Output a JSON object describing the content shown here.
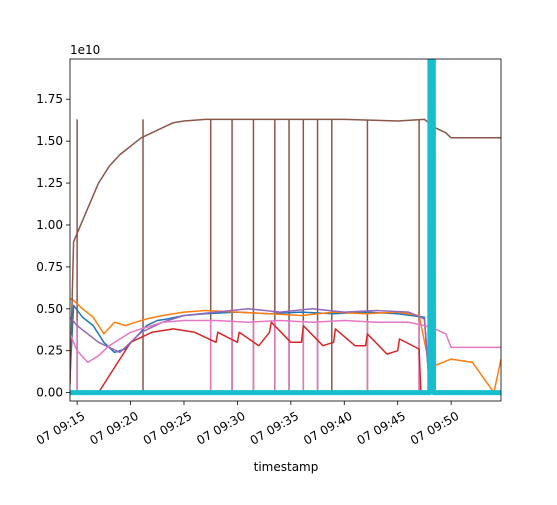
{
  "chart_data": {
    "type": "line",
    "title": "",
    "xlabel": "timestamp",
    "ylabel": "",
    "y_scale_label": "1e10",
    "xlim": [
      "07 09:14:20",
      "07 09:54:40"
    ],
    "ylim": [
      -0.05,
      1.99
    ],
    "x_ticks": [
      "07 09:15",
      "07 09:20",
      "07 09:25",
      "07 09:30",
      "07 09:35",
      "07 09:40",
      "07 09:45",
      "07 09:50"
    ],
    "y_ticks": [
      "0.00",
      "0.25",
      "0.50",
      "0.75",
      "1.00",
      "1.25",
      "1.50",
      "1.75"
    ],
    "grid": false,
    "legend": "none",
    "series": [
      {
        "color": "#1f77b4",
        "x": [
          "07 09:14:20",
          "07 09:14:40",
          "07 09:15:30",
          "07 09:16:30",
          "07 09:17:30",
          "07 09:18:30",
          "07 09:19:30",
          "07 09:20:30",
          "07 09:21:30",
          "07 09:22:30",
          "07 09:23:30",
          "07 09:25:00",
          "07 09:27:00",
          "07 09:30:00",
          "07 09:33:00",
          "07 09:36:00",
          "07 09:39:00",
          "07 09:42:00",
          "07 09:45:00",
          "07 09:47:30",
          "07 09:48:00",
          "07 09:54:40"
        ],
        "y": [
          0.1,
          0.52,
          0.45,
          0.4,
          0.3,
          0.24,
          0.26,
          0.33,
          0.4,
          0.43,
          0.44,
          0.46,
          0.47,
          0.48,
          0.47,
          0.48,
          0.47,
          0.48,
          0.47,
          0.45,
          0.0,
          0.0
        ]
      },
      {
        "color": "#ff7f0e",
        "x": [
          "07 09:14:20",
          "07 09:14:40",
          "07 09:15:30",
          "07 09:16:30",
          "07 09:17:30",
          "07 09:18:30",
          "07 09:19:30",
          "07 09:20:30",
          "07 09:21:30",
          "07 09:23:00",
          "07 09:25:00",
          "07 09:27:00",
          "07 09:30:00",
          "07 09:33:00",
          "07 09:36:00",
          "07 09:39:00",
          "07 09:42:00",
          "07 09:45:00",
          "07 09:47:00",
          "07 09:48:00",
          "07 09:50:00",
          "07 09:52:00",
          "07 09:54:00",
          "07 09:54:40"
        ],
        "y": [
          0.56,
          0.55,
          0.5,
          0.45,
          0.35,
          0.42,
          0.4,
          0.42,
          0.44,
          0.46,
          0.48,
          0.49,
          0.48,
          0.47,
          0.46,
          0.48,
          0.47,
          0.48,
          0.46,
          0.15,
          0.2,
          0.18,
          0.0,
          0.2
        ]
      },
      {
        "color": "#2ca02c",
        "x": [
          "07 09:14:20",
          "07 09:54:40"
        ],
        "y": [
          0.0,
          0.0
        ]
      },
      {
        "color": "#d62728",
        "x": [
          "07 09:14:20",
          "07 09:15:00",
          "07 09:17:00",
          "07 09:20:00",
          "07 09:22:00",
          "07 09:24:00",
          "07 09:26:00",
          "07 09:28:00",
          "07 09:28:10",
          "07 09:30:00",
          "07 09:30:10",
          "07 09:32:00",
          "07 09:33:00",
          "07 09:33:10",
          "07 09:35:00",
          "07 09:36:00",
          "07 09:36:10",
          "07 09:38:00",
          "07 09:39:00",
          "07 09:39:10",
          "07 09:41:00",
          "07 09:42:00",
          "07 09:42:10",
          "07 09:44:00",
          "07 09:45:00",
          "07 09:45:10",
          "07 09:47:00",
          "07 09:47:10",
          "07 09:48:00",
          "07 09:54:40"
        ],
        "y": [
          0.0,
          0.0,
          0.0,
          0.3,
          0.36,
          0.38,
          0.36,
          0.3,
          0.36,
          0.3,
          0.36,
          0.28,
          0.36,
          0.42,
          0.3,
          0.3,
          0.4,
          0.28,
          0.3,
          0.38,
          0.28,
          0.28,
          0.35,
          0.23,
          0.25,
          0.32,
          0.26,
          0.0,
          0.0,
          0.0
        ]
      },
      {
        "color": "#9467bd",
        "x": [
          "07 09:14:20",
          "07 09:15:00",
          "07 09:17:00",
          "07 09:19:00",
          "07 09:21:00",
          "07 09:23:00",
          "07 09:25:00",
          "07 09:28:00",
          "07 09:31:00",
          "07 09:34:00",
          "07 09:37:00",
          "07 09:40:00",
          "07 09:43:00",
          "07 09:46:00",
          "07 09:47:30",
          "07 09:48:00",
          "07 09:54:40"
        ],
        "y": [
          0.45,
          0.4,
          0.3,
          0.24,
          0.36,
          0.42,
          0.46,
          0.48,
          0.5,
          0.48,
          0.5,
          0.48,
          0.49,
          0.48,
          0.44,
          0.0,
          0.0
        ]
      },
      {
        "color": "#8c564b",
        "x": [
          "07 09:14:20",
          "07 09:14:40",
          "07 09:15:00",
          "07 09:16:00",
          "07 09:17:00",
          "07 09:18:00",
          "07 09:19:00",
          "07 09:20:00",
          "07 09:21:00",
          "07 09:22:00",
          "07 09:23:00",
          "07 09:24:00",
          "07 09:25:00",
          "07 09:27:00",
          "07 09:30:00",
          "07 09:35:00",
          "07 09:40:00",
          "07 09:45:00",
          "07 09:47:30",
          "07 09:48:30",
          "07 09:49:30",
          "07 09:50:00",
          "07 09:52:00",
          "07 09:54:40"
        ],
        "y": [
          0.05,
          0.9,
          0.95,
          1.1,
          1.25,
          1.35,
          1.42,
          1.47,
          1.52,
          1.55,
          1.58,
          1.61,
          1.62,
          1.63,
          1.63,
          1.63,
          1.63,
          1.62,
          1.63,
          1.58,
          1.55,
          1.52,
          1.52,
          1.52
        ]
      },
      {
        "color": "#e377c2",
        "x": [
          "07 09:14:20",
          "07 09:15:00",
          "07 09:16:00",
          "07 09:17:00",
          "07 09:18:00",
          "07 09:19:00",
          "07 09:20:00",
          "07 09:21:00",
          "07 09:22:00",
          "07 09:23:00",
          "07 09:25:00",
          "07 09:28:00",
          "07 09:31:00",
          "07 09:34:00",
          "07 09:37:00",
          "07 09:40:00",
          "07 09:43:00",
          "07 09:46:00",
          "07 09:47:30",
          "07 09:48:30",
          "07 09:49:30",
          "07 09:50:00",
          "07 09:54:40"
        ],
        "y": [
          0.35,
          0.25,
          0.18,
          0.22,
          0.28,
          0.32,
          0.36,
          0.38,
          0.4,
          0.42,
          0.43,
          0.43,
          0.42,
          0.43,
          0.42,
          0.43,
          0.42,
          0.42,
          0.4,
          0.38,
          0.35,
          0.27,
          0.27
        ]
      },
      {
        "color": "#17becf",
        "x": [
          "07 09:14:20",
          "07 09:48:00",
          "07 09:48:01",
          "07 09:48:20",
          "07 09:48:21",
          "07 09:54:40"
        ],
        "y": [
          0.0,
          0.0,
          1.99,
          1.99,
          0.0,
          0.0
        ]
      }
    ],
    "vertical_drops": [
      {
        "color": "#8c564b",
        "x": [
          "07 09:15:00",
          "07 09:21:10",
          "07 09:27:30",
          "07 09:29:30",
          "07 09:31:30",
          "07 09:33:30",
          "07 09:34:50",
          "07 09:36:10",
          "07 09:37:30",
          "07 09:38:50",
          "07 09:42:10",
          "07 09:47:00"
        ],
        "from": 1.63,
        "to": 0.0
      },
      {
        "color": "#e377c2",
        "x": [
          "07 09:15:00",
          "07 09:27:30",
          "07 09:29:30",
          "07 09:31:30",
          "07 09:33:30",
          "07 09:34:50",
          "07 09:36:10",
          "07 09:37:30",
          "07 09:42:10",
          "07 09:47:00"
        ],
        "from": 0.43,
        "to": 0.0
      }
    ]
  }
}
